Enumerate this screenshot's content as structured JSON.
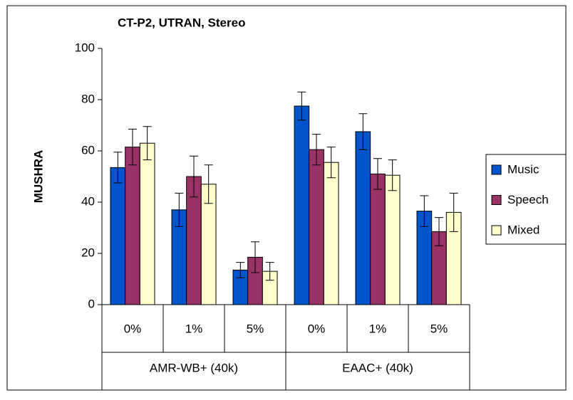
{
  "chart_data": {
    "type": "bar",
    "title": "CT-P2, UTRAN, Stereo",
    "y_label": "MUSHRA",
    "categories": [
      "0%",
      "1%",
      "5%",
      "0%",
      "1%",
      "5%"
    ],
    "group_labels": [
      "AMR-WB+  (40k)",
      "EAAC+ (40k)"
    ],
    "series": [
      {
        "name": "Music",
        "color": "#0055cc",
        "values": [
          53.5,
          37,
          13.5,
          77.5,
          67.5,
          36.5
        ],
        "errors": [
          6,
          6.5,
          3,
          5.5,
          7,
          6
        ]
      },
      {
        "name": "Speech",
        "color": "#993366",
        "values": [
          61.5,
          50,
          18.5,
          60.5,
          51,
          28.5
        ],
        "errors": [
          7,
          8,
          6,
          6,
          6,
          5.5
        ]
      },
      {
        "name": "Mixed",
        "color": "#ffffcc",
        "values": [
          63,
          47,
          13,
          55.5,
          50.5,
          36
        ],
        "errors": [
          6.5,
          7.5,
          3.5,
          6,
          6,
          7.5
        ]
      }
    ],
    "ylim": [
      0,
      100
    ],
    "yticks": [
      0,
      20,
      40,
      60,
      80,
      100
    ],
    "legend": "right"
  }
}
